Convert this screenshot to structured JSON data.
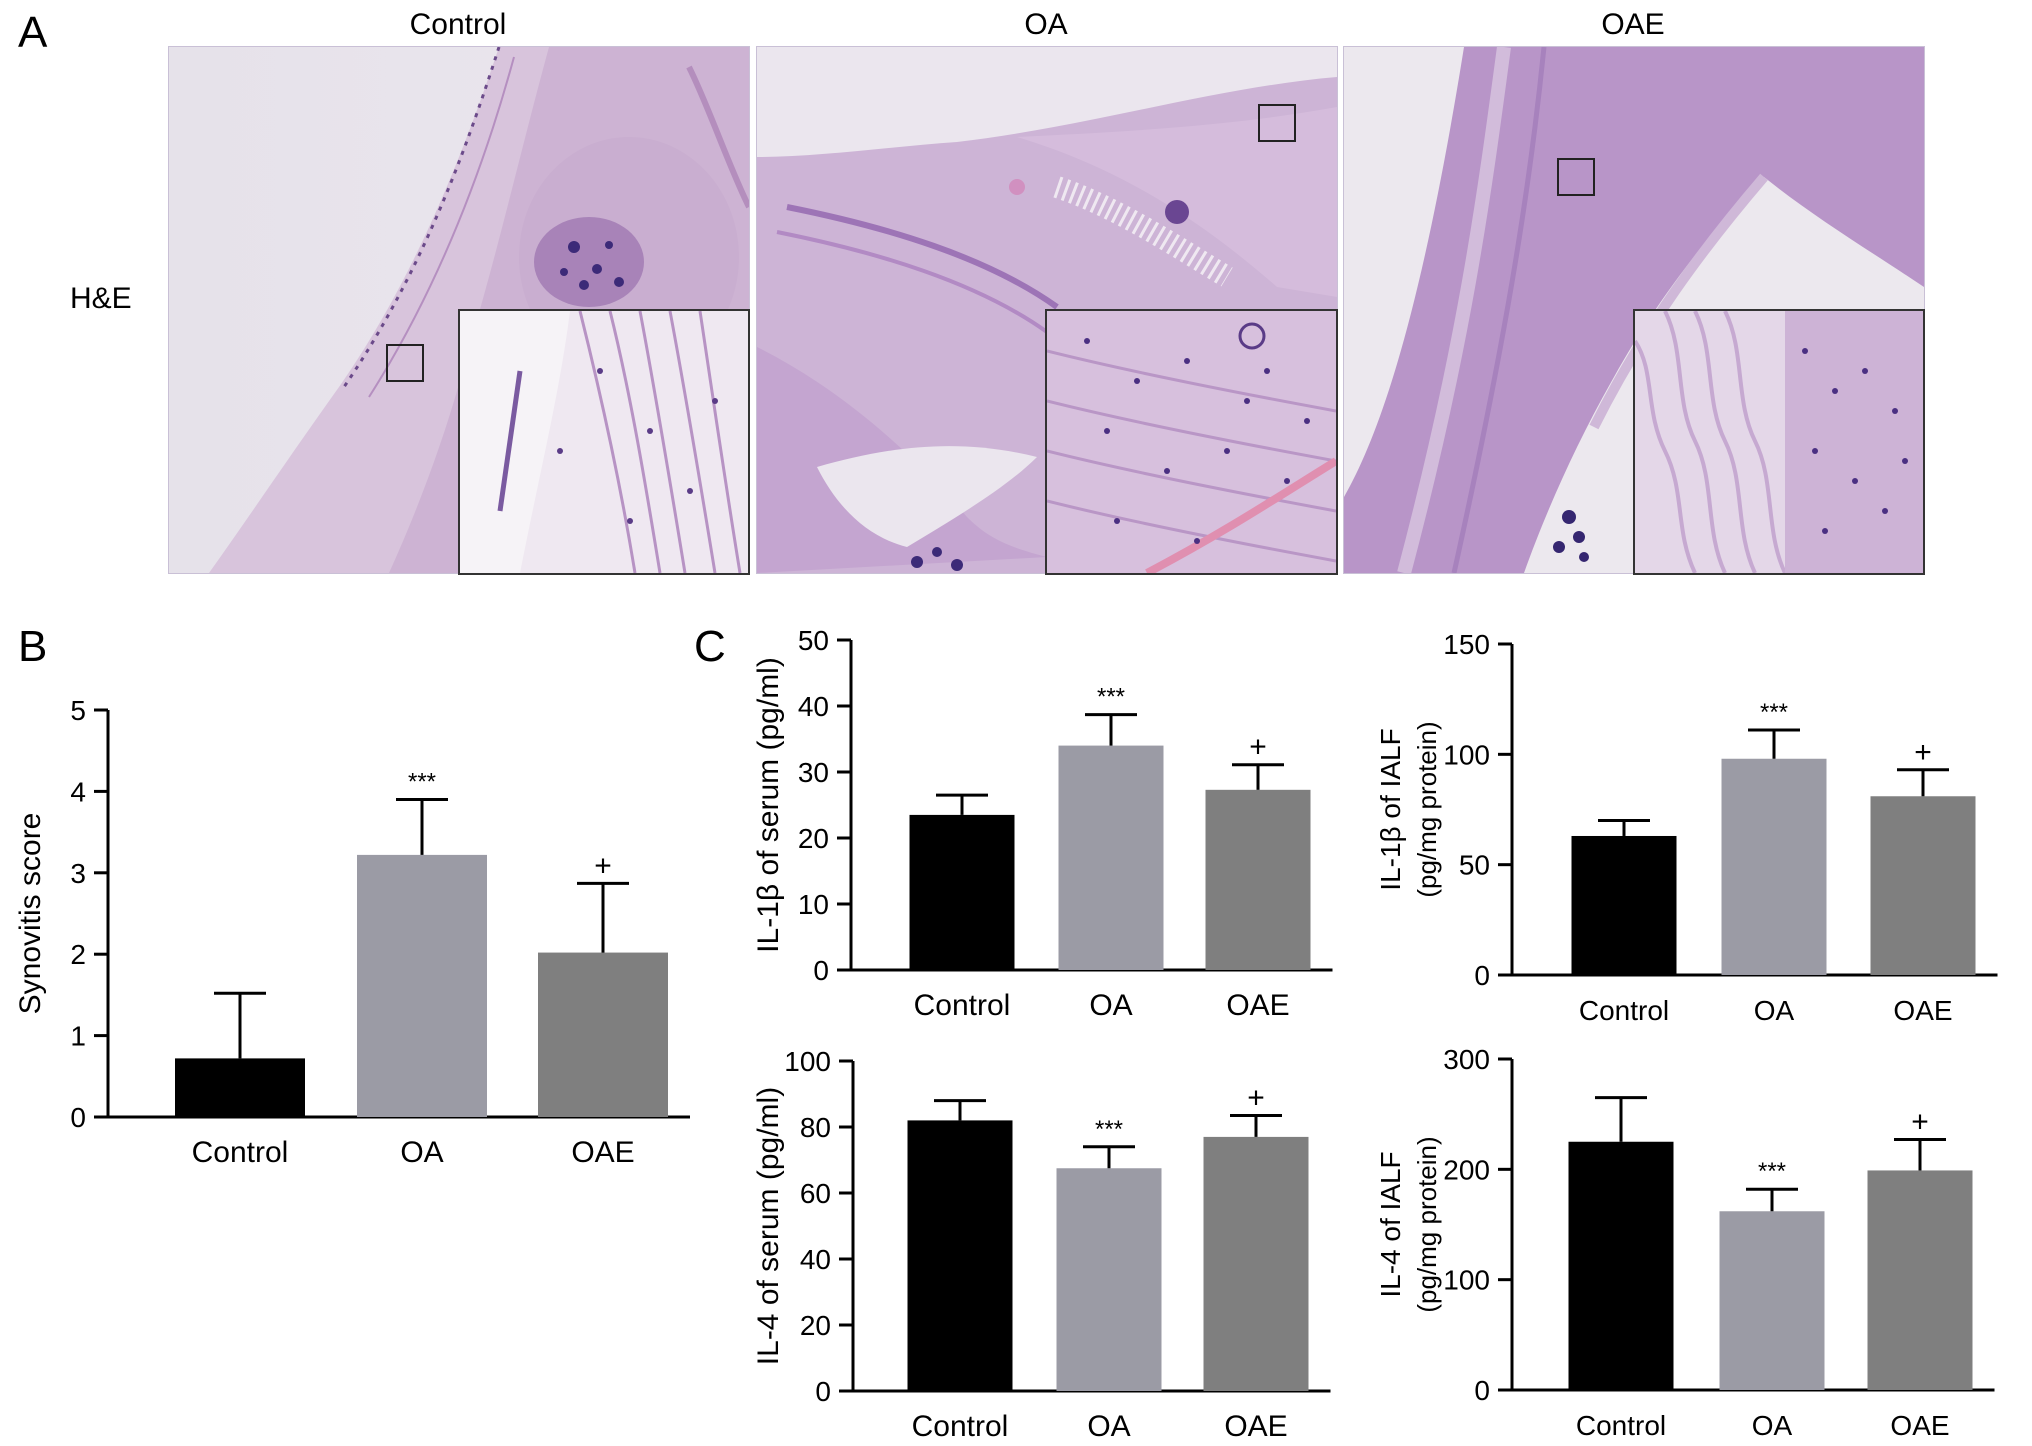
{
  "panel_labels": {
    "a": "A",
    "b": "B",
    "c": "C"
  },
  "panel_a": {
    "columns": [
      "Control",
      "OA",
      "OAE"
    ],
    "row_label": "H&E"
  },
  "chart_data": [
    {
      "id": "synovitis",
      "type": "bar",
      "categories": [
        "Control",
        "OA",
        "OAE"
      ],
      "values": [
        0.72,
        3.22,
        2.02
      ],
      "errors": [
        0.8,
        0.68,
        0.85
      ],
      "annotations": [
        "",
        "***",
        "+"
      ],
      "colors": [
        "#000000",
        "#9b9ba5",
        "#7f7f7f"
      ],
      "title": "",
      "xlabel": "",
      "ylabel": "Synovitis score",
      "ylim": [
        0,
        5
      ],
      "yticks": [
        0,
        1,
        2,
        3,
        4,
        5
      ],
      "grid": false
    },
    {
      "id": "il1b_serum",
      "type": "bar",
      "categories": [
        "Control",
        "OA",
        "OAE"
      ],
      "values": [
        23.5,
        34.0,
        27.3
      ],
      "errors": [
        3.0,
        4.7,
        3.8
      ],
      "annotations": [
        "",
        "***",
        "+"
      ],
      "colors": [
        "#000000",
        "#9b9ba5",
        "#7f7f7f"
      ],
      "title": "",
      "xlabel": "",
      "ylabel": "IL-1β of serum (pg/ml)",
      "ylim": [
        0,
        50
      ],
      "yticks": [
        0,
        10,
        20,
        30,
        40,
        50
      ],
      "grid": false
    },
    {
      "id": "il1b_ialf",
      "type": "bar",
      "categories": [
        "Control",
        "OA",
        "OAE"
      ],
      "values": [
        63,
        98,
        81
      ],
      "errors": [
        7,
        13,
        12
      ],
      "annotations": [
        "",
        "***",
        "+"
      ],
      "colors": [
        "#000000",
        "#9b9ba5",
        "#7f7f7f"
      ],
      "title": "",
      "xlabel": "",
      "ylabel": [
        "IL-1β of IALF",
        "(pg/mg protein)"
      ],
      "ylim": [
        0,
        150
      ],
      "yticks": [
        0,
        50,
        100,
        150
      ],
      "grid": false
    },
    {
      "id": "il4_serum",
      "type": "bar",
      "categories": [
        "Control",
        "OA",
        "OAE"
      ],
      "values": [
        82,
        67.5,
        77
      ],
      "errors": [
        6,
        6.5,
        6.5
      ],
      "annotations": [
        "",
        "***",
        "+"
      ],
      "colors": [
        "#000000",
        "#9b9ba5",
        "#7f7f7f"
      ],
      "title": "",
      "xlabel": "",
      "ylabel": "IL-4 of serum (pg/ml)",
      "ylim": [
        0,
        100
      ],
      "yticks": [
        0,
        20,
        40,
        60,
        80,
        100
      ],
      "grid": false
    },
    {
      "id": "il4_ialf",
      "type": "bar",
      "categories": [
        "Control",
        "OA",
        "OAE"
      ],
      "values": [
        225,
        162,
        199
      ],
      "errors": [
        40,
        20,
        28
      ],
      "annotations": [
        "",
        "***",
        "+"
      ],
      "colors": [
        "#000000",
        "#9b9ba5",
        "#7f7f7f"
      ],
      "title": "",
      "xlabel": "",
      "ylabel": [
        "IL-4 of IALF",
        "(pg/mg protein)"
      ],
      "ylim": [
        0,
        300
      ],
      "yticks": [
        0,
        100,
        200,
        300
      ],
      "grid": false
    }
  ]
}
